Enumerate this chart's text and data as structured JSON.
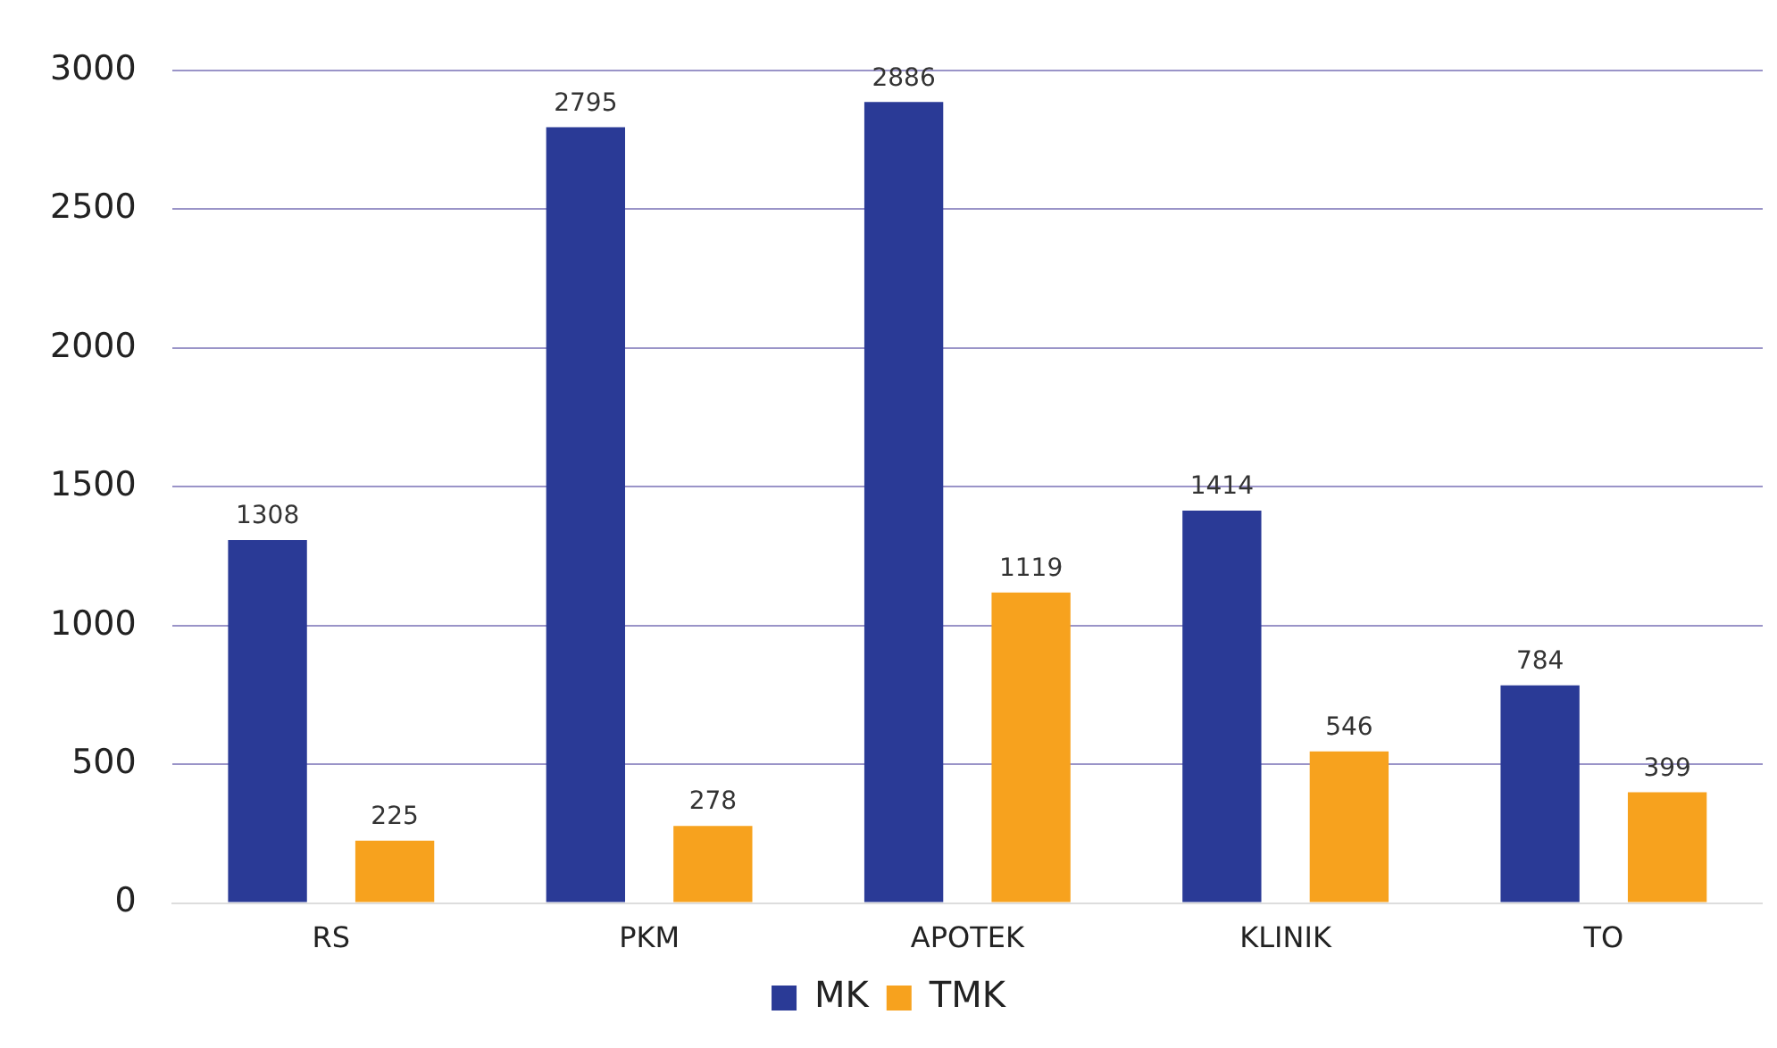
{
  "chart_data": {
    "type": "bar",
    "categories": [
      "RS",
      "PKM",
      "APOTEK",
      "KLINIK",
      "TO"
    ],
    "series": [
      {
        "name": "MK",
        "color": "#2a3a96",
        "values": [
          1308,
          2795,
          2886,
          1414,
          784
        ]
      },
      {
        "name": "TMK",
        "color": "#f7a21e",
        "values": [
          225,
          278,
          1119,
          546,
          399
        ]
      }
    ],
    "ylim": [
      0,
      3000
    ],
    "yticks": [
      0,
      500,
      1000,
      1500,
      2000,
      2500,
      3000
    ],
    "grid": "y",
    "legend": "bottom",
    "data_labels": true
  }
}
